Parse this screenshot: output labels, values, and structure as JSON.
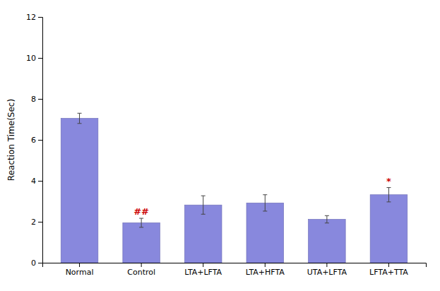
{
  "chart_data": {
    "type": "bar",
    "categories": [
      "Normal",
      "Control",
      "LTA+LFTA",
      "LTA+HFTA",
      "UTA+LFTA",
      "LFTA+TTA"
    ],
    "values": [
      7.05,
      1.95,
      2.82,
      2.92,
      2.12,
      3.32
    ],
    "errors": [
      0.25,
      0.22,
      0.45,
      0.4,
      0.18,
      0.35
    ],
    "color": "#8888dd",
    "ylabel": "Reaction Time(Sec)",
    "ylim": [
      0,
      12
    ],
    "yticks": [
      0,
      2,
      4,
      6,
      8,
      10,
      12
    ],
    "grid": false,
    "annotations": [
      {
        "text": "##",
        "category": "Control",
        "color": "#cc0000"
      },
      {
        "text": "*",
        "category": "LFTA+TTA",
        "color": "#cc0000"
      }
    ]
  }
}
